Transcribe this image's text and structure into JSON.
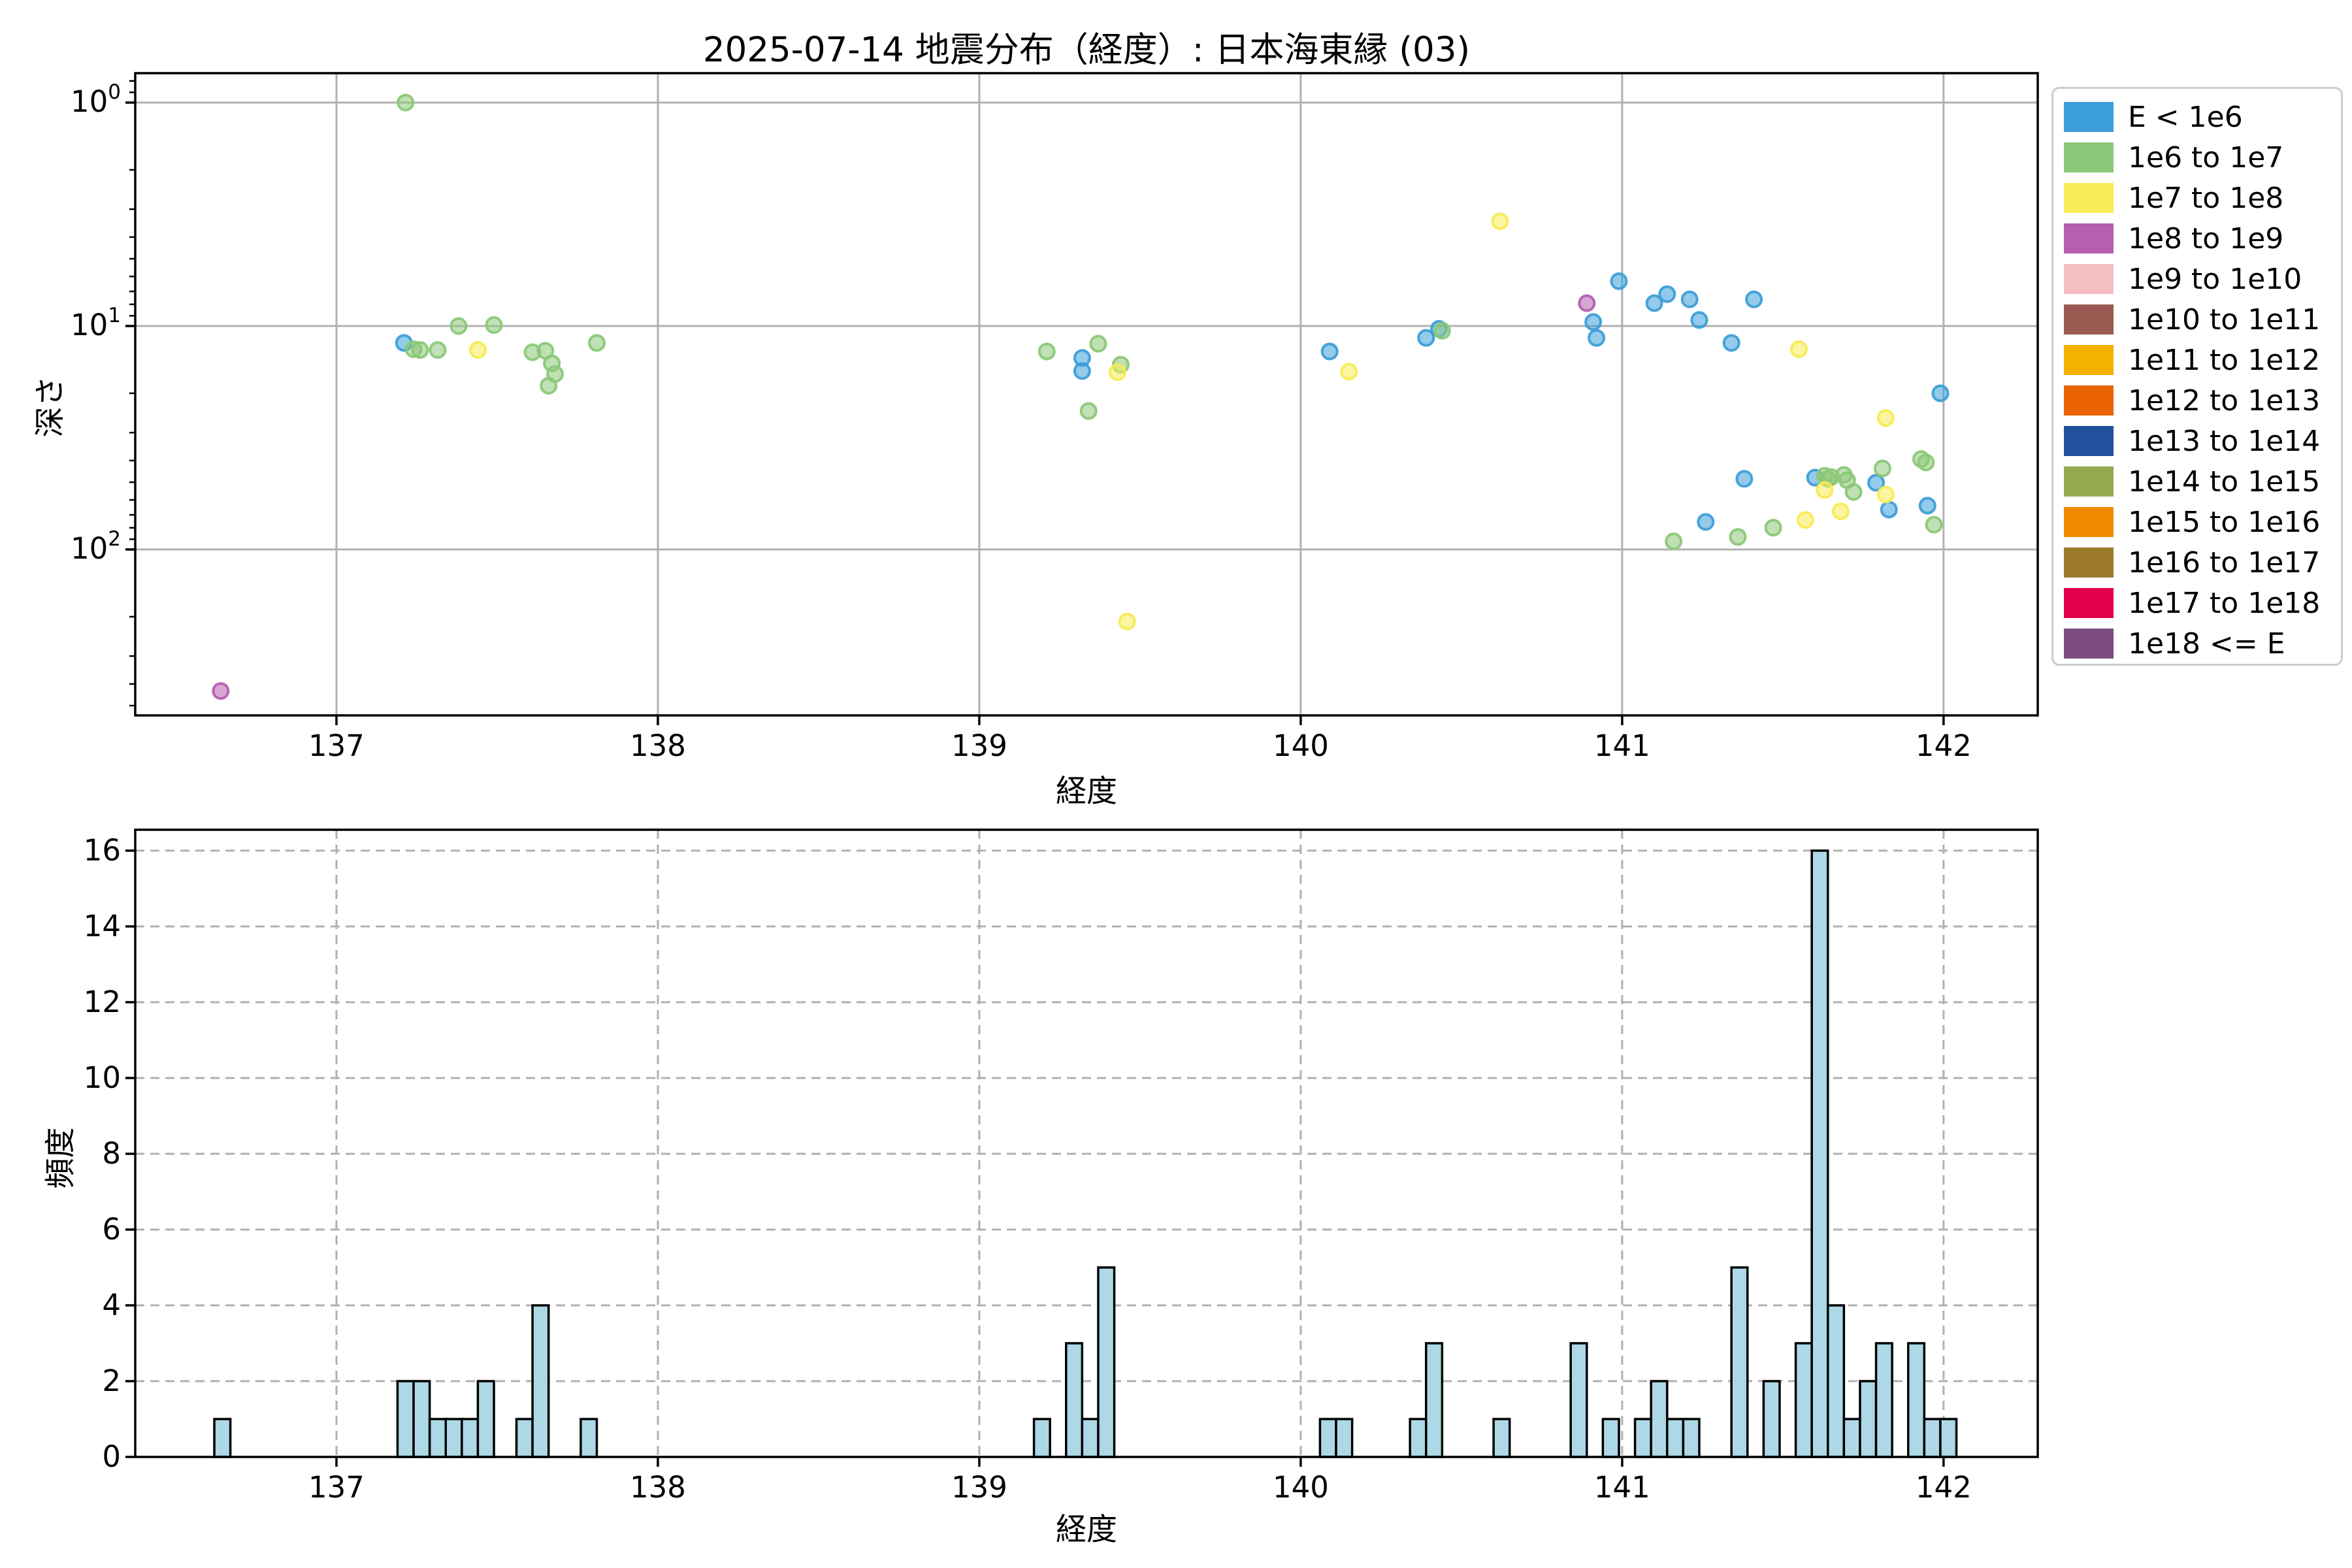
{
  "figure": {
    "title": "2025-07-14 地震分布（経度）: 日本海東縁 (03)"
  },
  "legend": {
    "entries": [
      {
        "label": "E < 1e6",
        "color": "#3D9FD9"
      },
      {
        "label": "1e6 to 1e7",
        "color": "#8CC878"
      },
      {
        "label": "1e7 to 1e8",
        "color": "#F7EC55"
      },
      {
        "label": "1e8 to 1e9",
        "color": "#B45FAF"
      },
      {
        "label": "1e9 to 1e10",
        "color": "#F5BFC2"
      },
      {
        "label": "1e10 to 1e11",
        "color": "#9A5B52"
      },
      {
        "label": "1e11 to 1e12",
        "color": "#F3B200"
      },
      {
        "label": "1e12 to 1e13",
        "color": "#E96305"
      },
      {
        "label": "1e13 to 1e14",
        "color": "#20509E"
      },
      {
        "label": "1e14 to 1e15",
        "color": "#95A94F"
      },
      {
        "label": "1e15 to 1e16",
        "color": "#F18A01"
      },
      {
        "label": "1e16 to 1e17",
        "color": "#9C7B2E"
      },
      {
        "label": "1e17 to 1e18",
        "color": "#E2004E"
      },
      {
        "label": "1e18 <= E",
        "color": "#7C4C80"
      }
    ]
  },
  "chart_data": [
    {
      "type": "scatter",
      "title": "2025-07-14 地震分布（経度）: 日本海東縁 (03)",
      "xlabel": "経度",
      "ylabel": "深さ",
      "x_range": [
        136.374,
        142.293
      ],
      "y_scale": "log",
      "y_inverted": true,
      "y_range_depth": [
        0.74,
        553
      ],
      "grid": true,
      "x_ticks": [
        137,
        138,
        139,
        140,
        141,
        142
      ],
      "y_tick_exponents": [
        0,
        1,
        2
      ],
      "series": [
        {
          "name": "E < 1e6",
          "color": "#3D9FD9",
          "points": [
            [
              137.21,
              11.9
            ],
            [
              139.32,
              13.9
            ],
            [
              139.32,
              15.9
            ],
            [
              140.09,
              13.0
            ],
            [
              140.39,
              11.3
            ],
            [
              140.43,
              10.3
            ],
            [
              140.91,
              9.6
            ],
            [
              140.92,
              11.3
            ],
            [
              140.99,
              6.3
            ],
            [
              141.1,
              7.9
            ],
            [
              141.14,
              7.2
            ],
            [
              141.21,
              7.6
            ],
            [
              141.24,
              9.4
            ],
            [
              141.41,
              7.6
            ],
            [
              141.34,
              11.9
            ],
            [
              141.99,
              20.0
            ],
            [
              141.38,
              48.3
            ],
            [
              141.6,
              47.7
            ],
            [
              141.79,
              50.3
            ],
            [
              141.83,
              66.3
            ],
            [
              141.95,
              63.7
            ],
            [
              141.26,
              75.3
            ]
          ]
        },
        {
          "name": "1e6 to 1e7",
          "color": "#8CC878",
          "points": [
            [
              137.215,
              1.0
            ],
            [
              137.24,
              12.7
            ],
            [
              137.26,
              12.8
            ],
            [
              137.315,
              12.8
            ],
            [
              137.38,
              10.0
            ],
            [
              137.49,
              9.9
            ],
            [
              137.61,
              13.1
            ],
            [
              137.65,
              12.9
            ],
            [
              137.67,
              14.7
            ],
            [
              137.68,
              16.4
            ],
            [
              137.66,
              18.5
            ],
            [
              137.81,
              11.9
            ],
            [
              139.21,
              13.0
            ],
            [
              139.37,
              12.0
            ],
            [
              139.34,
              24.0
            ],
            [
              139.44,
              14.9
            ],
            [
              140.44,
              10.5
            ],
            [
              141.93,
              39.4
            ],
            [
              141.945,
              40.8
            ],
            [
              141.81,
              43.4
            ],
            [
              141.63,
              46.8
            ],
            [
              141.64,
              48.3
            ],
            [
              141.65,
              47.4
            ],
            [
              141.69,
              46.4
            ],
            [
              141.7,
              49.0
            ],
            [
              141.72,
              55.3
            ],
            [
              141.97,
              77.5
            ],
            [
              141.47,
              79.9
            ],
            [
              141.36,
              87.9
            ],
            [
              141.16,
              92.0
            ]
          ]
        },
        {
          "name": "1e7 to 1e8",
          "color": "#F7EC55",
          "points": [
            [
              137.44,
              12.8
            ],
            [
              139.43,
              16.1
            ],
            [
              139.46,
              210.0
            ],
            [
              140.62,
              3.4
            ],
            [
              140.15,
              16.0
            ],
            [
              141.55,
              12.7
            ],
            [
              141.82,
              25.8
            ],
            [
              141.63,
              54.2
            ],
            [
              141.82,
              56.8
            ],
            [
              141.68,
              67.5
            ],
            [
              141.57,
              73.8
            ]
          ]
        },
        {
          "name": "1e8 to 1e9",
          "color": "#B45FAF",
          "points": [
            [
              136.64,
              430.0
            ],
            [
              140.89,
              7.9
            ]
          ]
        }
      ]
    },
    {
      "type": "bar",
      "xlabel": "経度",
      "ylabel": "頻度",
      "x_range": [
        136.374,
        142.293
      ],
      "ylim": [
        0,
        16.57
      ],
      "grid": "dashed",
      "x_ticks": [
        137,
        138,
        139,
        140,
        141,
        142
      ],
      "y_ticks": [
        0,
        2,
        4,
        6,
        8,
        10,
        12,
        14,
        16
      ],
      "bin_width": 0.05,
      "bar_fill": "#ADD8E6",
      "bar_edge": "#000000",
      "bars": [
        [
          136.62,
          1
        ],
        [
          137.19,
          2
        ],
        [
          137.24,
          2
        ],
        [
          137.29,
          1
        ],
        [
          137.34,
          1
        ],
        [
          137.39,
          1
        ],
        [
          137.44,
          2
        ],
        [
          137.56,
          1
        ],
        [
          137.61,
          4
        ],
        [
          137.76,
          1
        ],
        [
          139.17,
          1
        ],
        [
          139.27,
          3
        ],
        [
          139.32,
          1
        ],
        [
          139.37,
          5
        ],
        [
          140.06,
          1
        ],
        [
          140.11,
          1
        ],
        [
          140.34,
          1
        ],
        [
          140.39,
          3
        ],
        [
          140.6,
          1
        ],
        [
          140.84,
          3
        ],
        [
          140.94,
          1
        ],
        [
          141.04,
          1
        ],
        [
          141.09,
          2
        ],
        [
          141.14,
          1
        ],
        [
          141.19,
          1
        ],
        [
          141.34,
          5
        ],
        [
          141.44,
          2
        ],
        [
          141.54,
          3
        ],
        [
          141.59,
          16
        ],
        [
          141.64,
          4
        ],
        [
          141.69,
          1
        ],
        [
          141.74,
          2
        ],
        [
          141.79,
          3
        ],
        [
          141.89,
          3
        ],
        [
          141.94,
          1
        ],
        [
          141.99,
          1
        ]
      ]
    }
  ]
}
